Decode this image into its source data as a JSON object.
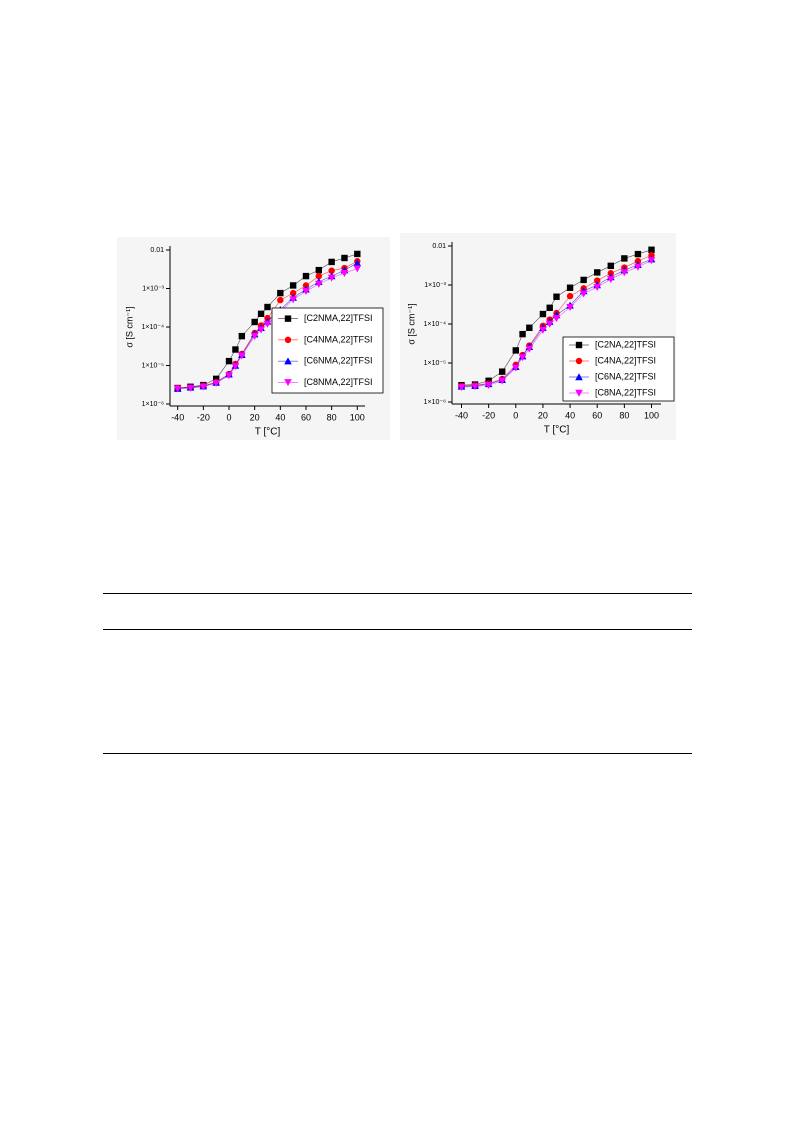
{
  "chart_data": [
    {
      "type": "line",
      "y_label": "σ [S cm⁻¹]",
      "x_label": "T [°C]",
      "y_scale": "log",
      "x": [
        -40,
        -30,
        -20,
        -10,
        0,
        5,
        10,
        20,
        25,
        30,
        40,
        50,
        60,
        70,
        80,
        90,
        100
      ],
      "xlim": [
        -46,
        106
      ],
      "xticks": [
        -40,
        -20,
        0,
        20,
        40,
        60,
        80,
        100
      ],
      "ylim": [
        1e-06,
        0.01
      ],
      "yticks": [
        {
          "value": 1e-06,
          "label": "1×10⁻⁶"
        },
        {
          "value": 1e-05,
          "label": "1×10⁻⁵"
        },
        {
          "value": 0.0001,
          "label": "1×10⁻⁴"
        },
        {
          "value": 0.001,
          "label": "1×10⁻³"
        },
        0.01
      ],
      "legend": "lower right",
      "series": [
        {
          "name": "[C2NMA,22]TFSI",
          "color": "#000000",
          "marker": "square",
          "values": [
            2.6e-06,
            2.8e-06,
            3.1e-06,
            4.5e-06,
            1.3e-05,
            2.6e-05,
            5.8e-05,
            0.000135,
            0.00022,
            0.00033,
            0.00076,
            0.0012,
            0.0021,
            0.003,
            0.0049,
            0.0062,
            0.0079
          ]
        },
        {
          "name": "[C4NMA,22]TFSI",
          "color": "#ff0000",
          "marker": "circle",
          "values": [
            2.6e-06,
            2.7e-06,
            3e-06,
            3.7e-06,
            6e-06,
            1.1e-05,
            2e-05,
            7e-05,
            0.00011,
            0.00017,
            0.0005,
            0.00076,
            0.0012,
            0.0021,
            0.0029,
            0.0034,
            0.0051
          ]
        },
        {
          "name": "[C6NMA,22]TFSI",
          "color": "#0000ff",
          "marker": "triangle-up",
          "values": [
            2.5e-06,
            2.7e-06,
            2.9e-06,
            3.6e-06,
            5.9e-06,
            1e-05,
            1.9e-05,
            6.5e-05,
            9.5e-05,
            0.00014,
            0.00028,
            0.00058,
            0.00095,
            0.0015,
            0.0021,
            0.003,
            0.0046
          ]
        },
        {
          "name": "[C8NMA,22]TFSI",
          "color": "#ff00ff",
          "marker": "triangle-down",
          "values": [
            2.5e-06,
            2.6e-06,
            2.8e-06,
            3.5e-06,
            5.5e-06,
            9.5e-06,
            1.8e-05,
            5.8e-05,
            8.5e-05,
            0.00012,
            0.00025,
            0.00052,
            0.00085,
            0.0013,
            0.0019,
            0.0025,
            0.0033
          ]
        }
      ]
    },
    {
      "type": "line",
      "y_label": "σ [S cm⁻¹]",
      "x_label": "T [°C]",
      "y_scale": "log",
      "x": [
        -40,
        -30,
        -20,
        -10,
        0,
        5,
        10,
        20,
        25,
        30,
        40,
        50,
        60,
        70,
        80,
        90,
        100
      ],
      "xlim": [
        -47,
        107
      ],
      "xticks": [
        -40,
        -20,
        0,
        20,
        40,
        60,
        80,
        100
      ],
      "ylim": [
        1e-06,
        0.01
      ],
      "yticks": [
        {
          "value": 1e-06,
          "label": "1×10⁻⁶"
        },
        {
          "value": 1e-05,
          "label": "1×10⁻⁵"
        },
        {
          "value": 0.0001,
          "label": "1×10⁻⁴"
        },
        {
          "value": 0.001,
          "label": "1×10⁻³"
        },
        0.01
      ],
      "legend": "lower right",
      "series": [
        {
          "name": "[C2NA,22]TFSI",
          "color": "#000000",
          "marker": "square",
          "values": [
            2.7e-06,
            2.8e-06,
            3.5e-06,
            6e-06,
            2.1e-05,
            5.5e-05,
            8e-05,
            0.00018,
            0.00026,
            0.0005,
            0.00085,
            0.00135,
            0.0021,
            0.0031,
            0.0048,
            0.0062,
            0.008
          ]
        },
        {
          "name": "[C4NA,22]TFSI",
          "color": "#ff0000",
          "marker": "circle",
          "values": [
            2.6e-06,
            2.7e-06,
            3e-06,
            3.9e-06,
            9e-06,
            1.6e-05,
            2.8e-05,
            9e-05,
            0.00013,
            0.00019,
            0.00052,
            0.00082,
            0.0013,
            0.002,
            0.0028,
            0.0041,
            0.0058
          ]
        },
        {
          "name": "[C6NA,22]TFSI",
          "color": "#0000ff",
          "marker": "triangle-up",
          "values": [
            2.5e-06,
            2.6e-06,
            2.9e-06,
            3.7e-06,
            8e-06,
            1.5e-05,
            2.6e-05,
            8e-05,
            0.000115,
            0.00017,
            0.0003,
            0.0007,
            0.001,
            0.0016,
            0.0024,
            0.0033,
            0.0046
          ]
        },
        {
          "name": "[C8NA,22]TFSI",
          "color": "#ff00ff",
          "marker": "triangle-down",
          "values": [
            2.4e-06,
            2.5e-06,
            2.7e-06,
            3.5e-06,
            7.5e-06,
            1.4e-05,
            2.3e-05,
            7e-05,
            0.0001,
            0.00014,
            0.00027,
            0.0006,
            0.00088,
            0.0014,
            0.0021,
            0.0029,
            0.0043
          ]
        }
      ]
    }
  ]
}
